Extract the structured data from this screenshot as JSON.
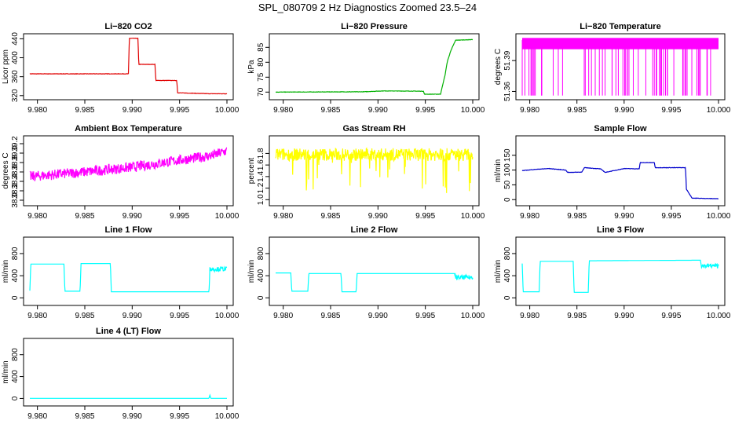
{
  "suptitle": "SPL_080709  2 Hz Diagnostics Zoomed 23.5–24",
  "chart_data": [
    {
      "type": "line",
      "title": "Li−820 CO2",
      "ylabel": "Licor ppm",
      "color": "#e00000",
      "xlim": [
        9.9792,
        10.0
      ],
      "xticks": [
        "9.980",
        "9.985",
        "9.990",
        "9.995",
        "10.000"
      ],
      "ylim": [
        318,
        444
      ],
      "yticks": [
        320,
        360,
        400,
        440
      ],
      "series": [
        {
          "x": [
            9.9792,
            9.9896,
            9.9897,
            9.9906,
            9.9907,
            9.9924,
            9.9925,
            9.9947,
            9.9948,
            9.9982,
            10.0
          ],
          "y": [
            366,
            366,
            441,
            441,
            386,
            386,
            352,
            352,
            326,
            324,
            324
          ]
        }
      ]
    },
    {
      "type": "line",
      "title": "Li−820 Pressure",
      "ylabel": "kPa",
      "color": "#00b000",
      "xlim": [
        9.9792,
        10.0
      ],
      "xticks": [
        "9.980",
        "9.985",
        "9.990",
        "9.995",
        "10.000"
      ],
      "ylim": [
        68.5,
        88.5
      ],
      "yticks": [
        70,
        75,
        80,
        85
      ],
      "series": [
        {
          "x": [
            9.9792,
            9.9885,
            9.9905,
            9.9948,
            9.9949,
            9.9966,
            9.9968,
            9.9971,
            9.9973,
            9.9977,
            9.9982,
            10.0
          ],
          "y": [
            70.0,
            70.1,
            70.4,
            70.3,
            69.3,
            69.3,
            72,
            76,
            80,
            84,
            87.4,
            87.6
          ]
        }
      ]
    },
    {
      "type": "line",
      "title": "Li−820 Temperature",
      "ylabel": "degrees C",
      "color": "#ff00ff",
      "xlim": [
        9.9792,
        10.0
      ],
      "xticks": [
        "9.980",
        "9.985",
        "9.990",
        "9.995",
        "10.000"
      ],
      "ylim": [
        51.355,
        51.413
      ],
      "yticks": [
        "51.36",
        "51.39"
      ],
      "series": [
        {
          "x": [
            9.9792,
            10.0
          ],
          "y": [
            51.41,
            51.41
          ]
        }
      ]
    },
    {
      "type": "line",
      "title": "Ambient Box Temperature",
      "ylabel": "degrees C",
      "color": "#ff00ff",
      "xlim": [
        9.9792,
        10.0
      ],
      "xticks": [
        "9.980",
        "9.985",
        "9.990",
        "9.995",
        "10.000"
      ],
      "ylim": [
        37.95,
        39.3
      ],
      "yticks": [
        "38.0",
        "38.2",
        "38.4",
        "38.6",
        "38.8",
        "39.0",
        "39.2"
      ],
      "series": [
        {
          "x": [
            9.9792,
            9.985,
            9.99,
            9.995,
            9.9985,
            10.0
          ],
          "y": [
            38.5,
            38.6,
            38.7,
            38.85,
            38.95,
            39.05
          ]
        }
      ]
    },
    {
      "type": "line",
      "title": "Gas Stream RH",
      "ylabel": "percent",
      "color": "#ffff00",
      "xlim": [
        9.9792,
        10.0
      ],
      "xticks": [
        "9.980",
        "9.985",
        "9.990",
        "9.995",
        "10.000"
      ],
      "ylim": [
        0.95,
        2.05
      ],
      "yticks": [
        "1.0",
        "1.2",
        "1.4",
        "1.6",
        "1.8"
      ],
      "series": [
        {
          "x": [
            9.9792,
            10.0
          ],
          "y": [
            1.78,
            1.78
          ]
        }
      ]
    },
    {
      "type": "line",
      "title": "Sample Flow",
      "ylabel": "ml/min",
      "color": "#0000cc",
      "xlim": [
        9.9792,
        10.0
      ],
      "xticks": [
        "9.980",
        "9.985",
        "9.990",
        "9.995",
        "10.000"
      ],
      "ylim": [
        -10,
        205
      ],
      "yticks": [
        0,
        50,
        100,
        150
      ],
      "series": [
        {
          "x": [
            9.9792,
            9.9805,
            9.982,
            9.9838,
            9.984,
            9.9855,
            9.9858,
            9.9875,
            9.988,
            9.99,
            9.9916,
            9.9917,
            9.9932,
            9.9933,
            9.9965,
            9.9966,
            9.9972,
            10.0
          ],
          "y": [
            98,
            102,
            105,
            100,
            92,
            93,
            108,
            104,
            92,
            105,
            104,
            125,
            125,
            108,
            108,
            35,
            5,
            3
          ]
        }
      ]
    },
    {
      "type": "line",
      "title": "Line 1 Flow",
      "ylabel": "ml/min",
      "color": "#00ffff",
      "xlim": [
        9.9792,
        10.0
      ],
      "xticks": [
        "9.980",
        "9.985",
        "9.990",
        "9.995",
        "10.000"
      ],
      "ylim": [
        -80,
        1040
      ],
      "yticks": [
        0,
        400,
        800
      ],
      "series": [
        {
          "x": [
            9.9792,
            9.9793,
            9.9828,
            9.9829,
            9.9845,
            9.9846,
            9.9877,
            9.9878,
            9.9981,
            9.9982,
            10.0
          ],
          "y": [
            130,
            610,
            610,
            120,
            120,
            620,
            620,
            110,
            110,
            520,
            520
          ]
        }
      ]
    },
    {
      "type": "line",
      "title": "Line 2 Flow",
      "ylabel": "ml/min",
      "color": "#00ffff",
      "xlim": [
        9.9792,
        10.0
      ],
      "xticks": [
        "9.980",
        "9.985",
        "9.990",
        "9.995",
        "10.000"
      ],
      "ylim": [
        -80,
        1040
      ],
      "yticks": [
        0,
        400,
        800
      ],
      "series": [
        {
          "x": [
            9.9792,
            9.9808,
            9.9809,
            9.9826,
            9.9827,
            9.9861,
            9.9862,
            9.9877,
            9.9878,
            9.9981,
            9.9982,
            10.0
          ],
          "y": [
            450,
            450,
            120,
            120,
            440,
            440,
            110,
            110,
            440,
            440,
            370,
            370
          ]
        }
      ]
    },
    {
      "type": "line",
      "title": "Line 3 Flow",
      "ylabel": "ml/min",
      "color": "#00ffff",
      "xlim": [
        9.9792,
        10.0
      ],
      "xticks": [
        "9.980",
        "9.985",
        "9.990",
        "9.995",
        "10.000"
      ],
      "ylim": [
        -80,
        1040
      ],
      "yticks": [
        0,
        400,
        800
      ],
      "series": [
        {
          "x": [
            9.9792,
            9.9793,
            9.981,
            9.9811,
            9.9846,
            9.9847,
            9.9862,
            9.9863,
            9.9981,
            9.9982,
            10.0
          ],
          "y": [
            620,
            110,
            110,
            660,
            660,
            100,
            100,
            670,
            680,
            580,
            580
          ]
        }
      ]
    },
    {
      "type": "line",
      "title": "Line 4 (LT) Flow",
      "ylabel": "ml/min",
      "color": "#00ffff",
      "xlim": [
        9.9792,
        10.0
      ],
      "xticks": [
        "9.980",
        "9.985",
        "9.990",
        "9.995",
        "10.000"
      ],
      "ylim": [
        -80,
        1040
      ],
      "yticks": [
        0,
        400,
        800
      ],
      "series": [
        {
          "x": [
            9.9792,
            9.9981,
            9.9982,
            9.9983,
            10.0
          ],
          "y": [
            2,
            2,
            60,
            2,
            2
          ]
        }
      ]
    }
  ]
}
